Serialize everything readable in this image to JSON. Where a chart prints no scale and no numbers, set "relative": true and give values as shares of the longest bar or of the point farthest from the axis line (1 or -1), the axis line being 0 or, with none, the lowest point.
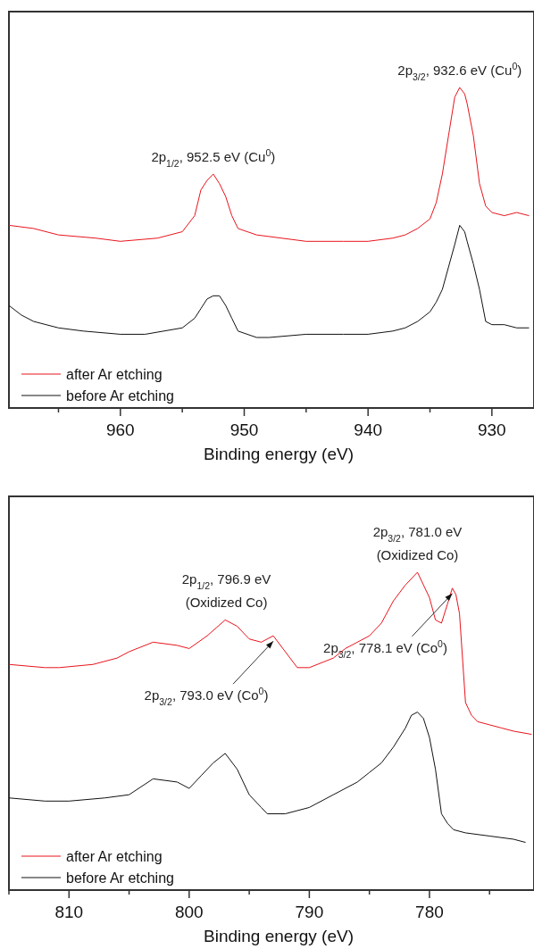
{
  "chart_data": [
    {
      "type": "line",
      "relative": true,
      "xlabel": "Binding energy (eV)",
      "xlim": [
        969,
        926.6
      ],
      "xticks": [
        {
          "value": 965,
          "label": null
        },
        960,
        {
          "value": 955,
          "label": null
        },
        950,
        {
          "value": 945,
          "label": null
        },
        940,
        {
          "value": 935,
          "label": null
        },
        930
      ],
      "legend": "bottom left",
      "tick_labels": "x",
      "series": [
        {
          "name": "after Ar etching",
          "color": "#e8141c",
          "x": [
            969,
            967,
            965,
            962,
            960,
            957,
            955,
            954,
            953.5,
            953,
            952.5,
            952,
            951.5,
            951,
            950.5,
            949,
            947,
            945,
            942,
            940,
            938,
            937,
            936,
            935,
            934.5,
            934,
            933.5,
            933,
            932.6,
            932.2,
            932,
            931.5,
            931,
            930.5,
            930,
            929,
            928,
            927
          ],
          "values": [
            0.57,
            0.56,
            0.54,
            0.53,
            0.52,
            0.53,
            0.55,
            0.6,
            0.68,
            0.71,
            0.73,
            0.7,
            0.66,
            0.6,
            0.56,
            0.54,
            0.53,
            0.52,
            0.52,
            0.52,
            0.53,
            0.54,
            0.56,
            0.59,
            0.64,
            0.73,
            0.85,
            0.97,
            1,
            0.98,
            0.95,
            0.85,
            0.7,
            0.63,
            0.61,
            0.6,
            0.61,
            0.6
          ]
        },
        {
          "name": "before Ar etching",
          "color": "#111111",
          "x": [
            969,
            968,
            967,
            965,
            963,
            960,
            958,
            955,
            954,
            953.5,
            953,
            952.5,
            952,
            951.5,
            951,
            950.5,
            949,
            948,
            945,
            942,
            940,
            938,
            937,
            936,
            935,
            934.5,
            934,
            933.5,
            933,
            932.6,
            932.2,
            932,
            931.5,
            931,
            930.5,
            930,
            929,
            928,
            927
          ],
          "values": [
            0.32,
            0.29,
            0.27,
            0.25,
            0.24,
            0.23,
            0.23,
            0.25,
            0.28,
            0.31,
            0.34,
            0.35,
            0.35,
            0.32,
            0.28,
            0.24,
            0.22,
            0.22,
            0.23,
            0.23,
            0.23,
            0.24,
            0.25,
            0.27,
            0.3,
            0.33,
            0.37,
            0.44,
            0.51,
            0.57,
            0.55,
            0.52,
            0.45,
            0.37,
            0.27,
            0.26,
            0.26,
            0.25,
            0.25
          ]
        }
      ],
      "annotations": [
        {
          "text": "2p$_{1/2}$, 952.5 eV (Cu$^{0}$)",
          "x": 952.5,
          "y": 0.73
        },
        {
          "text": "2p$_{3/2}$, 932.6 eV (Cu$^{0}$)",
          "x": 932.6,
          "y": 1
        }
      ]
    },
    {
      "type": "line",
      "relative": true,
      "xlabel": "Binding energy (eV)",
      "xlim": [
        815,
        771.3
      ],
      "xticks": [
        {
          "value": 815,
          "label": null
        },
        810,
        {
          "value": 805,
          "label": null
        },
        800,
        {
          "value": 795,
          "label": null
        },
        790,
        {
          "value": 785,
          "label": null
        },
        780,
        {
          "value": 775,
          "label": null
        }
      ],
      "legend": "bottom left",
      "tick_labels": "x",
      "series": [
        {
          "name": "after Ar etching",
          "color": "#e8141c",
          "x": [
            815,
            812,
            810.8,
            808,
            806,
            805,
            803,
            801,
            800,
            798.5,
            797,
            796,
            795,
            794,
            793,
            792,
            791,
            790,
            788,
            787,
            785,
            784,
            783,
            782,
            781,
            780,
            779.5,
            779,
            778.5,
            778.1,
            777.8,
            777.5,
            777,
            776.5,
            776,
            775,
            774,
            773,
            771.5
          ],
          "values": [
            0.71,
            0.7,
            0.7,
            0.71,
            0.73,
            0.75,
            0.78,
            0.77,
            0.76,
            0.8,
            0.85,
            0.83,
            0.79,
            0.78,
            0.8,
            0.75,
            0.7,
            0.7,
            0.73,
            0.76,
            0.8,
            0.84,
            0.91,
            0.96,
            1,
            0.92,
            0.85,
            0.84,
            0.9,
            0.95,
            0.93,
            0.87,
            0.59,
            0.55,
            0.53,
            0.52,
            0.51,
            0.5,
            0.49
          ]
        },
        {
          "name": "before Ar etching",
          "color": "#111111",
          "x": [
            815,
            812,
            810,
            807,
            805,
            803,
            801,
            800,
            799,
            798,
            797,
            796,
            795,
            794,
            793.5,
            792,
            791,
            790,
            788,
            786,
            785,
            784,
            783,
            782,
            781.5,
            781,
            780.5,
            780,
            779.5,
            779,
            778.5,
            778,
            777,
            775,
            773,
            772
          ],
          "values": [
            0.29,
            0.28,
            0.28,
            0.29,
            0.3,
            0.35,
            0.34,
            0.32,
            0.36,
            0.4,
            0.43,
            0.38,
            0.3,
            0.26,
            0.24,
            0.24,
            0.25,
            0.26,
            0.3,
            0.34,
            0.37,
            0.4,
            0.45,
            0.51,
            0.55,
            0.56,
            0.54,
            0.48,
            0.38,
            0.24,
            0.21,
            0.19,
            0.18,
            0.17,
            0.16,
            0.15
          ]
        }
      ],
      "annotations": [
        {
          "text": "2p$_{1/2}$, 796.9 eV\n(Oxidized Co)",
          "x": 796.9,
          "y": 0.85
        },
        {
          "text": "2p$_{3/2}$, 793.0 eV (Co$^{0}$)",
          "x": 793,
          "y": 0.8
        },
        {
          "text": "2p$_{3/2}$, 781.0 eV\n(Oxidized Co)",
          "x": 781,
          "y": 1
        },
        {
          "text": "2p$_{3/2}$, 778.1 eV (Co$^{0}$)",
          "x": 778.1,
          "y": 0.95
        }
      ]
    }
  ]
}
